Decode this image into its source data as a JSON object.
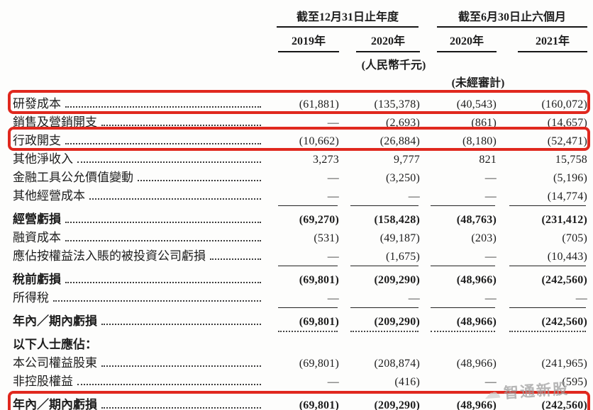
{
  "header": {
    "col_groups": [
      {
        "label": "截至12月31日止年度",
        "cols": [
          "2019年",
          "2020年"
        ]
      },
      {
        "label": "截至6月30日止六個月",
        "cols": [
          "2020年",
          "2021年"
        ]
      }
    ],
    "currency_note": "(人民幣千元)",
    "unaudited_note": "(未經審計)"
  },
  "rows": [
    {
      "label": "研發成本",
      "values": [
        "(61,881)",
        "(135,378)",
        "(40,543)",
        "(160,072)"
      ],
      "bold": false,
      "highlight": true,
      "leader": true
    },
    {
      "label": "銷售及營銷開支",
      "values": [
        "—",
        "(2,693)",
        "(861)",
        "(14,657)"
      ],
      "bold": false,
      "leader": true
    },
    {
      "label": "行政開支",
      "values": [
        "(10,662)",
        "(26,884)",
        "(8,180)",
        "(52,471)"
      ],
      "bold": false,
      "highlight": true,
      "leader": true
    },
    {
      "label": "其他淨收入",
      "values": [
        "3,273",
        "9,777",
        "821",
        "15,758"
      ],
      "bold": false,
      "leader": true
    },
    {
      "label": "金融工具公允價值變動",
      "values": [
        "—",
        "(3,250)",
        "—",
        "(5,196)"
      ],
      "bold": false,
      "leader": true
    },
    {
      "label": "其他經營成本",
      "values": [
        "—",
        "—",
        "—",
        "(14,774)"
      ],
      "bold": false,
      "leader": true,
      "rule_below": true
    },
    {
      "label": "經營虧損",
      "values": [
        "(69,270)",
        "(158,428)",
        "(48,763)",
        "(231,412)"
      ],
      "bold": true,
      "leader": true,
      "gap_before": true
    },
    {
      "label": "融資成本",
      "values": [
        "(531)",
        "(49,187)",
        "(203)",
        "(705)"
      ],
      "bold": false,
      "leader": true
    },
    {
      "label": "應佔按權益法入賬的被投資公司虧損",
      "values": [
        "—",
        "(1,675)",
        "—",
        "(10,443)"
      ],
      "bold": false,
      "leader": true,
      "rule_below": true
    },
    {
      "label": "稅前虧損",
      "values": [
        "(69,801)",
        "(209,290)",
        "(48,966)",
        "(242,560)"
      ],
      "bold": true,
      "leader": true,
      "gap_before": true
    },
    {
      "label": "所得稅",
      "values": [
        "—",
        "—",
        "—",
        "—"
      ],
      "bold": false,
      "leader": true,
      "rule_below": true
    },
    {
      "label": "年內／期內虧損",
      "values": [
        "(69,801)",
        "(209,290)",
        "(48,966)",
        "(242,560)"
      ],
      "bold": true,
      "leader": true,
      "gap_before": true,
      "rule_below_dotted": true
    },
    {
      "label": "以下人士應佔：",
      "values": [
        "",
        "",
        "",
        ""
      ],
      "bold": true,
      "leader": false,
      "gap_before": true
    },
    {
      "label": "本公司權益股東",
      "values": [
        "(69,801)",
        "(208,874)",
        "(48,966)",
        "(241,965)"
      ],
      "bold": false,
      "leader": true
    },
    {
      "label": "非控股權益",
      "values": [
        "—",
        "(416)",
        "—",
        "(595)"
      ],
      "bold": false,
      "leader": true,
      "rule_below": true
    },
    {
      "label": "年內／期內虧損",
      "values": [
        "(69,801)",
        "(209,290)",
        "(48,966)",
        "(242,560)"
      ],
      "bold": true,
      "highlight": true,
      "leader": true,
      "gap_before": true,
      "rule_below": true
    }
  ],
  "watermark": {
    "text": "智通新股",
    "icon": "☁"
  },
  "colors": {
    "highlight_red": "#e0281e",
    "rule_black": "#151515",
    "watermark_gray": "#9c9c9c"
  }
}
